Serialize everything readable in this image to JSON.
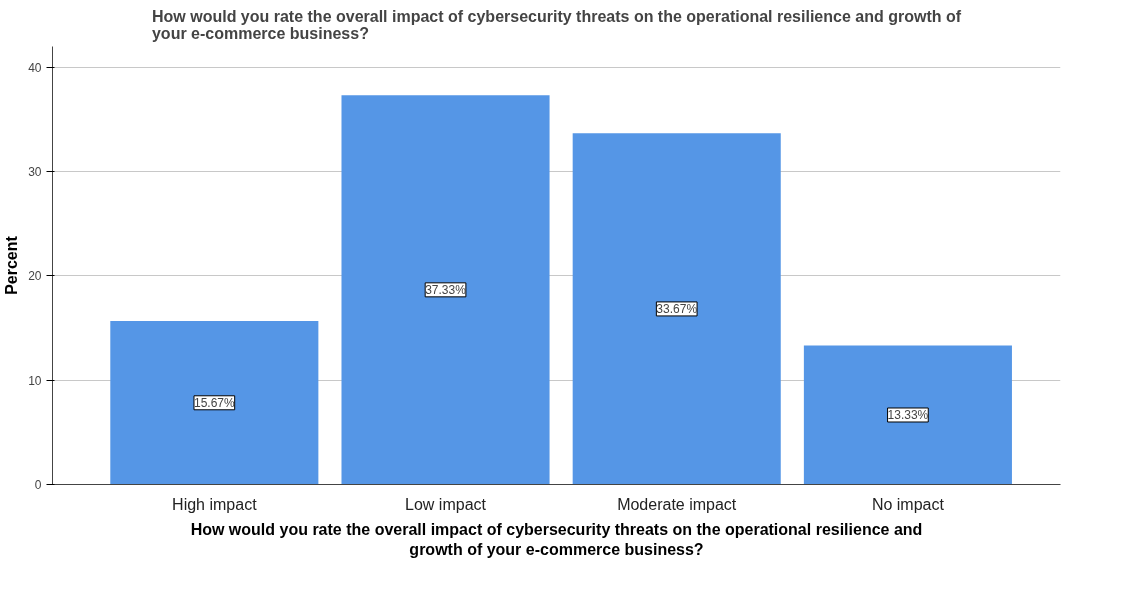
{
  "chart_data": {
    "type": "bar",
    "title": "How would you rate the overall impact of cybersecurity threats on the operational resilience and growth of\nyour e-commerce business?",
    "xlabel": "How would you rate the overall impact of cybersecurity threats on the operational resilience and\ngrowth of your e-commerce business?",
    "ylabel": "Percent",
    "categories": [
      "High impact",
      "Low impact",
      "Moderate impact",
      "No impact"
    ],
    "values": [
      15.67,
      37.33,
      33.67,
      13.33
    ],
    "value_labels": [
      "15.67%",
      "37.33%",
      "33.67%",
      "13.33%"
    ],
    "color": "#5596e6",
    "ylim": [
      0,
      42
    ],
    "yticks": [
      0,
      10,
      20,
      30,
      40
    ],
    "grid": "y"
  }
}
